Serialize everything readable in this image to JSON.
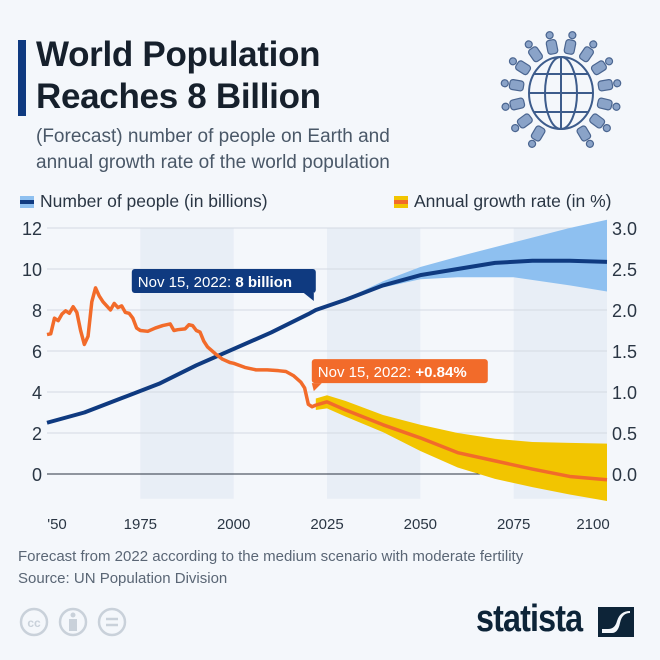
{
  "header": {
    "title_line1": "World Population",
    "title_line2": "Reaches 8 Billion",
    "subtitle_line1": "(Forecast) number of people on Earth and",
    "subtitle_line2": "annual growth rate of the world population"
  },
  "legend": [
    {
      "label": "Number of people (in billions)",
      "line_color": "#0f3a80",
      "band_color": "#8ec0f0"
    },
    {
      "label": "Annual growth rate (in %)",
      "line_color": "#f26b2a",
      "band_color": "#f2c500"
    }
  ],
  "footer": {
    "note": "Forecast from 2022 according to the medium scenario with moderate fertility",
    "source": "Source: UN Population Division",
    "brand": "statista"
  },
  "chart_data": {
    "type": "line",
    "x_range": [
      1950,
      2100
    ],
    "x_ticks": [
      "'50",
      "1975",
      "2000",
      "2025",
      "2050",
      "2075",
      "2100"
    ],
    "x_tick_values": [
      1950,
      1975,
      2000,
      2025,
      2050,
      2075,
      2100
    ],
    "shaded_periods": [
      [
        1975,
        2000
      ],
      [
        2025,
        2050
      ],
      [
        2075,
        2100
      ]
    ],
    "y_left": {
      "label": "Number of people (in billions)",
      "range": [
        -1.5,
        12
      ],
      "ticks": [
        "0",
        "2",
        "4",
        "6",
        "8",
        "10",
        "12"
      ]
    },
    "y_right": {
      "label": "Annual growth rate (in %)",
      "range": [
        -0.375,
        3.0
      ],
      "ticks": [
        "0.0",
        "0.5",
        "1.0",
        "1.5",
        "2.0",
        "2.5",
        "3.0"
      ]
    },
    "grid": true,
    "series": [
      {
        "name": "Number of people (in billions)",
        "axis": "left",
        "color": "#0f3a80",
        "x": [
          1950,
          1960,
          1970,
          1980,
          1990,
          2000,
          2010,
          2020,
          2022,
          2030,
          2040,
          2050,
          2060,
          2070,
          2080,
          2090,
          2100
        ],
        "values": [
          2.5,
          3.0,
          3.7,
          4.4,
          5.3,
          6.1,
          6.9,
          7.8,
          8.0,
          8.5,
          9.2,
          9.7,
          10.0,
          10.3,
          10.4,
          10.4,
          10.35
        ],
        "band": {
          "color": "#8ec0f0",
          "x": [
            2030,
            2040,
            2050,
            2060,
            2075,
            2090,
            2100
          ],
          "lower": [
            8.5,
            9.1,
            9.5,
            9.6,
            9.6,
            9.2,
            8.9
          ],
          "upper": [
            8.55,
            9.4,
            10.1,
            10.6,
            11.3,
            12.0,
            12.4
          ]
        }
      },
      {
        "name": "Annual growth rate (in %)",
        "axis": "right",
        "color": "#f26b2a",
        "x": [
          1950,
          1951,
          1952,
          1953,
          1954,
          1955,
          1956,
          1957,
          1958,
          1959,
          1960,
          1961,
          1962,
          1963,
          1964,
          1965,
          1967,
          1968,
          1969,
          1970,
          1971,
          1972,
          1973,
          1974,
          1975,
          1977,
          1979,
          1981,
          1983,
          1984,
          1985,
          1987,
          1988,
          1989,
          1990,
          1991,
          1992,
          1993,
          1995,
          1997,
          1999,
          2000,
          2003,
          2006,
          2009,
          2012,
          2014,
          2016,
          2018,
          2019,
          2020,
          2021,
          2022,
          2025,
          2030,
          2040,
          2050,
          2060,
          2070,
          2080,
          2090,
          2100
        ],
        "values": [
          1.7,
          1.71,
          1.9,
          1.87,
          1.95,
          1.99,
          1.96,
          2.04,
          1.97,
          1.75,
          1.58,
          1.68,
          2.1,
          2.27,
          2.17,
          2.1,
          2.0,
          2.08,
          2.03,
          2.05,
          1.97,
          1.96,
          1.9,
          1.78,
          1.75,
          1.74,
          1.78,
          1.81,
          1.83,
          1.75,
          1.76,
          1.77,
          1.82,
          1.81,
          1.75,
          1.73,
          1.62,
          1.55,
          1.47,
          1.4,
          1.36,
          1.35,
          1.3,
          1.27,
          1.27,
          1.26,
          1.25,
          1.2,
          1.12,
          1.05,
          0.85,
          0.82,
          0.84,
          0.88,
          0.78,
          0.6,
          0.44,
          0.26,
          0.16,
          0.06,
          -0.03,
          -0.07
        ],
        "band": {
          "color": "#f2c500",
          "x": [
            2022,
            2025,
            2030,
            2040,
            2050,
            2060,
            2070,
            2080,
            2090,
            2100
          ],
          "lower": [
            0.78,
            0.8,
            0.7,
            0.51,
            0.28,
            0.08,
            -0.06,
            -0.16,
            -0.25,
            -0.33
          ],
          "upper": [
            0.92,
            0.96,
            0.89,
            0.72,
            0.6,
            0.5,
            0.43,
            0.39,
            0.38,
            0.37
          ]
        }
      }
    ],
    "annotations": [
      {
        "prefix": "Nov 15, 2022: ",
        "value": "8 billion",
        "x": 2022,
        "series": 0,
        "color": "#0f3a80"
      },
      {
        "prefix": "Nov 15, 2022: ",
        "value": "+0.84%",
        "x": 2022,
        "series": 1,
        "color": "#f26b2a"
      }
    ]
  }
}
